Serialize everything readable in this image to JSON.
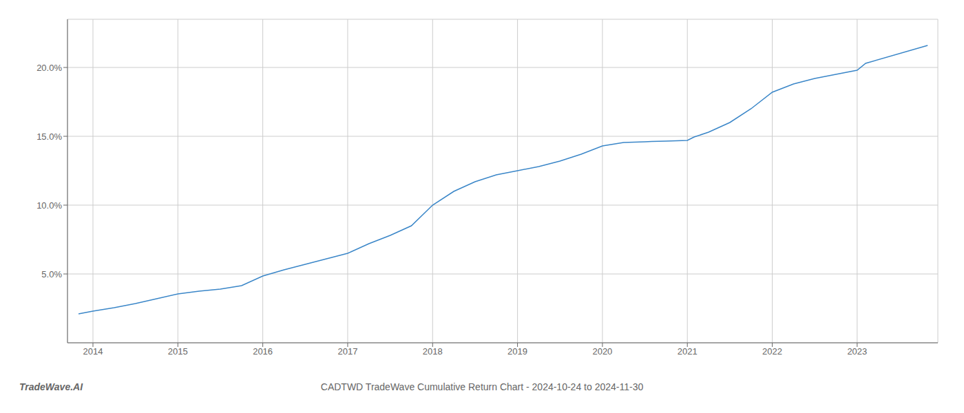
{
  "chart_data": {
    "type": "line",
    "title": "CADTWD TradeWave Cumulative Return Chart - 2024-10-24 to 2024-11-30",
    "annotations": [
      "TradeWave.AI"
    ],
    "x": [
      2013.83,
      2014.0,
      2014.25,
      2014.5,
      2014.75,
      2015.0,
      2015.25,
      2015.5,
      2015.75,
      2016.0,
      2016.25,
      2016.5,
      2016.75,
      2017.0,
      2017.25,
      2017.5,
      2017.75,
      2018.0,
      2018.25,
      2018.5,
      2018.75,
      2019.0,
      2019.25,
      2019.5,
      2019.75,
      2020.0,
      2020.25,
      2020.5,
      2020.58,
      2020.75,
      2021.0,
      2021.08,
      2021.25,
      2021.5,
      2021.75,
      2022.0,
      2022.25,
      2022.5,
      2022.75,
      2023.0,
      2023.1,
      2023.83
    ],
    "values": [
      2.1,
      2.3,
      2.55,
      2.85,
      3.2,
      3.55,
      3.75,
      3.9,
      4.15,
      4.85,
      5.3,
      5.7,
      6.1,
      6.5,
      7.2,
      7.8,
      8.5,
      10.0,
      11.0,
      11.7,
      12.2,
      12.5,
      12.8,
      13.2,
      13.7,
      14.3,
      14.55,
      14.6,
      14.62,
      14.65,
      14.7,
      14.95,
      15.3,
      16.0,
      17.0,
      18.2,
      18.8,
      19.2,
      19.5,
      19.8,
      20.3,
      21.6
    ],
    "color": "#3a86c8",
    "xlim": [
      2013.7,
      2023.95
    ],
    "ylim": [
      0,
      23.5
    ],
    "xticks": [
      2014,
      2015,
      2016,
      2017,
      2018,
      2019,
      2020,
      2021,
      2022,
      2023
    ],
    "yticks": [
      {
        "value": 5.0,
        "label": "5.0%"
      },
      {
        "value": 10.0,
        "label": "10.0%"
      },
      {
        "value": 15.0,
        "label": "15.0%"
      },
      {
        "value": 20.0,
        "label": "20.0%"
      }
    ],
    "grid": true
  }
}
